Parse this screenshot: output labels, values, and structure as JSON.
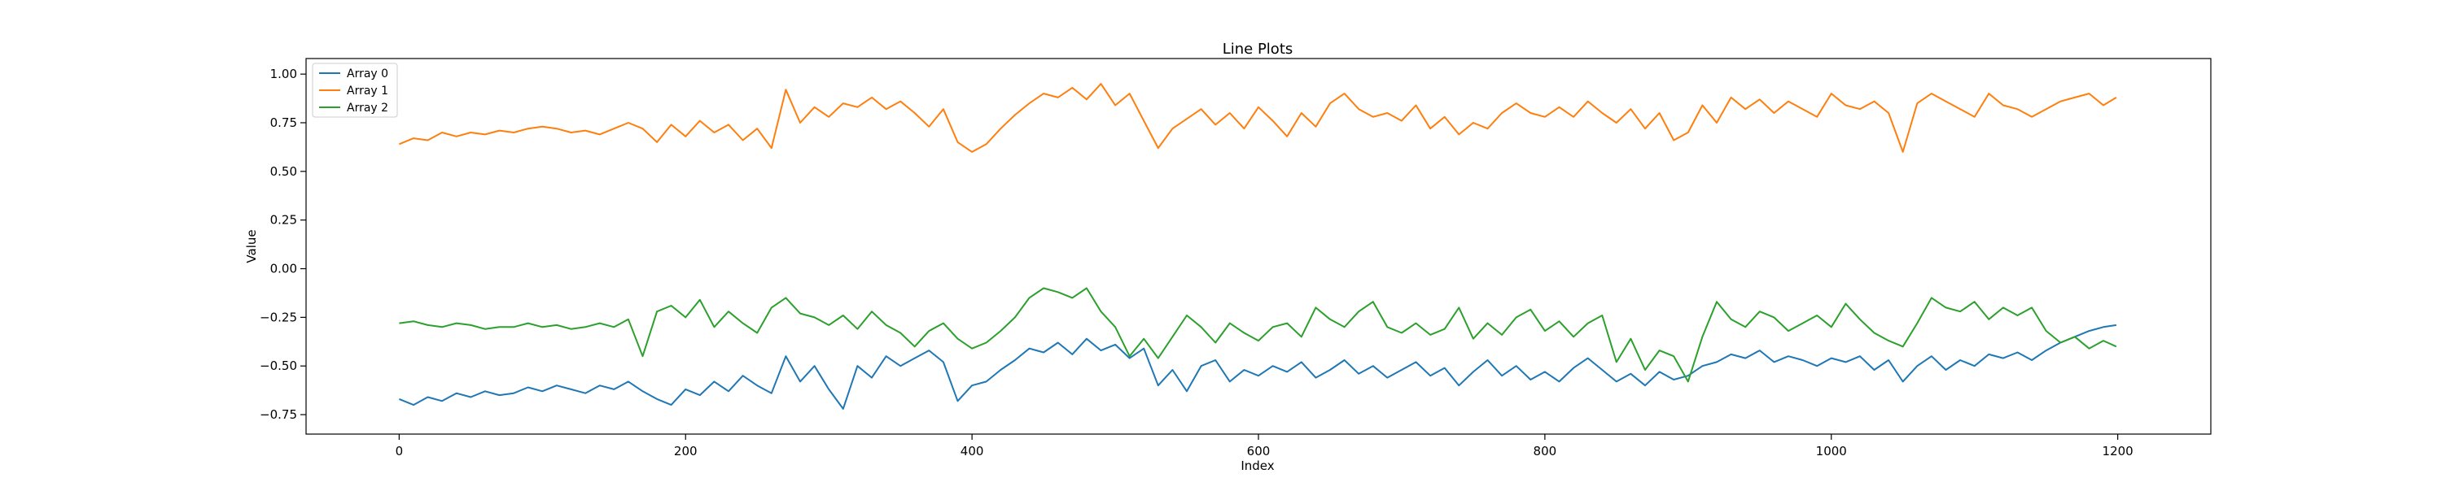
{
  "chart_data": {
    "type": "line",
    "title": "Line Plots",
    "xlabel": "Index",
    "ylabel": "Value",
    "xlim": [
      -65,
      1265
    ],
    "ylim": [
      -0.85,
      1.08
    ],
    "xticks": [
      0,
      200,
      400,
      600,
      800,
      1000,
      1200
    ],
    "yticks": [
      -0.75,
      -0.5,
      -0.25,
      0.0,
      0.25,
      0.5,
      0.75,
      1.0
    ],
    "xtick_labels": [
      "0",
      "200",
      "400",
      "600",
      "800",
      "1000",
      "1200"
    ],
    "ytick_labels": [
      "−0.75",
      "−0.50",
      "−0.25",
      "0.00",
      "0.25",
      "0.50",
      "0.75",
      "1.00"
    ],
    "grid": false,
    "legend_position": "top-left",
    "series": [
      {
        "name": "Array 0",
        "color": "#1f77b4",
        "x": [
          0,
          10,
          20,
          30,
          40,
          50,
          60,
          70,
          80,
          90,
          100,
          110,
          120,
          130,
          140,
          150,
          160,
          170,
          180,
          190,
          200,
          210,
          220,
          230,
          240,
          250,
          260,
          270,
          280,
          290,
          300,
          310,
          320,
          330,
          340,
          350,
          360,
          370,
          380,
          390,
          400,
          410,
          420,
          430,
          440,
          450,
          460,
          470,
          480,
          490,
          500,
          510,
          520,
          530,
          540,
          550,
          560,
          570,
          580,
          590,
          600,
          610,
          620,
          630,
          640,
          650,
          660,
          670,
          680,
          690,
          700,
          710,
          720,
          730,
          740,
          750,
          760,
          770,
          780,
          790,
          800,
          810,
          820,
          830,
          840,
          850,
          860,
          870,
          880,
          890,
          900,
          910,
          920,
          930,
          940,
          950,
          960,
          970,
          980,
          990,
          1000,
          1010,
          1020,
          1030,
          1040,
          1050,
          1060,
          1070,
          1080,
          1090,
          1100,
          1110,
          1120,
          1130,
          1140,
          1150,
          1160,
          1170,
          1180,
          1190,
          1199
        ],
        "y": [
          -0.67,
          -0.7,
          -0.66,
          -0.68,
          -0.64,
          -0.66,
          -0.63,
          -0.65,
          -0.64,
          -0.61,
          -0.63,
          -0.6,
          -0.62,
          -0.64,
          -0.6,
          -0.62,
          -0.58,
          -0.63,
          -0.67,
          -0.7,
          -0.62,
          -0.65,
          -0.58,
          -0.63,
          -0.55,
          -0.6,
          -0.64,
          -0.45,
          -0.58,
          -0.5,
          -0.62,
          -0.72,
          -0.5,
          -0.56,
          -0.45,
          -0.5,
          -0.46,
          -0.42,
          -0.48,
          -0.68,
          -0.6,
          -0.58,
          -0.52,
          -0.47,
          -0.41,
          -0.43,
          -0.38,
          -0.44,
          -0.36,
          -0.42,
          -0.39,
          -0.46,
          -0.41,
          -0.6,
          -0.52,
          -0.63,
          -0.5,
          -0.47,
          -0.58,
          -0.52,
          -0.55,
          -0.5,
          -0.53,
          -0.48,
          -0.56,
          -0.52,
          -0.47,
          -0.54,
          -0.5,
          -0.56,
          -0.52,
          -0.48,
          -0.55,
          -0.51,
          -0.6,
          -0.53,
          -0.47,
          -0.55,
          -0.5,
          -0.57,
          -0.53,
          -0.58,
          -0.51,
          -0.46,
          -0.52,
          -0.58,
          -0.54,
          -0.6,
          -0.53,
          -0.57,
          -0.55,
          -0.5,
          -0.48,
          -0.44,
          -0.46,
          -0.42,
          -0.48,
          -0.45,
          -0.47,
          -0.5,
          -0.46,
          -0.48,
          -0.45,
          -0.52,
          -0.47,
          -0.58,
          -0.5,
          -0.45,
          -0.52,
          -0.47,
          -0.5,
          -0.44,
          -0.46,
          -0.43,
          -0.47,
          -0.42,
          -0.38,
          -0.35,
          -0.32,
          -0.3,
          -0.29
        ]
      },
      {
        "name": "Array 1",
        "color": "#ff7f0e",
        "x": [
          0,
          10,
          20,
          30,
          40,
          50,
          60,
          70,
          80,
          90,
          100,
          110,
          120,
          130,
          140,
          150,
          160,
          170,
          180,
          190,
          200,
          210,
          220,
          230,
          240,
          250,
          260,
          270,
          280,
          290,
          300,
          310,
          320,
          330,
          340,
          350,
          360,
          370,
          380,
          390,
          400,
          410,
          420,
          430,
          440,
          450,
          460,
          470,
          480,
          490,
          500,
          510,
          520,
          530,
          540,
          550,
          560,
          570,
          580,
          590,
          600,
          610,
          620,
          630,
          640,
          650,
          660,
          670,
          680,
          690,
          700,
          710,
          720,
          730,
          740,
          750,
          760,
          770,
          780,
          790,
          800,
          810,
          820,
          830,
          840,
          850,
          860,
          870,
          880,
          890,
          900,
          910,
          920,
          930,
          940,
          950,
          960,
          970,
          980,
          990,
          1000,
          1010,
          1020,
          1030,
          1040,
          1050,
          1060,
          1070,
          1080,
          1090,
          1100,
          1110,
          1120,
          1130,
          1140,
          1150,
          1160,
          1170,
          1180,
          1190,
          1199
        ],
        "y": [
          0.64,
          0.67,
          0.66,
          0.7,
          0.68,
          0.7,
          0.69,
          0.71,
          0.7,
          0.72,
          0.73,
          0.72,
          0.7,
          0.71,
          0.69,
          0.72,
          0.75,
          0.72,
          0.65,
          0.74,
          0.68,
          0.76,
          0.7,
          0.74,
          0.66,
          0.72,
          0.62,
          0.92,
          0.75,
          0.83,
          0.78,
          0.85,
          0.83,
          0.88,
          0.82,
          0.86,
          0.8,
          0.73,
          0.82,
          0.65,
          0.6,
          0.64,
          0.72,
          0.79,
          0.85,
          0.9,
          0.88,
          0.93,
          0.87,
          0.95,
          0.84,
          0.9,
          0.76,
          0.62,
          0.72,
          0.77,
          0.82,
          0.74,
          0.8,
          0.72,
          0.83,
          0.76,
          0.68,
          0.8,
          0.73,
          0.85,
          0.9,
          0.82,
          0.78,
          0.8,
          0.76,
          0.84,
          0.72,
          0.78,
          0.69,
          0.75,
          0.72,
          0.8,
          0.85,
          0.8,
          0.78,
          0.83,
          0.78,
          0.86,
          0.8,
          0.75,
          0.82,
          0.72,
          0.8,
          0.66,
          0.7,
          0.84,
          0.75,
          0.88,
          0.82,
          0.87,
          0.8,
          0.86,
          0.82,
          0.78,
          0.9,
          0.84,
          0.82,
          0.86,
          0.8,
          0.6,
          0.85,
          0.9,
          0.86,
          0.82,
          0.78,
          0.9,
          0.84,
          0.82,
          0.78,
          0.82,
          0.86,
          0.88,
          0.9,
          0.84,
          0.88
        ]
      },
      {
        "name": "Array 2",
        "color": "#2ca02c",
        "x": [
          0,
          10,
          20,
          30,
          40,
          50,
          60,
          70,
          80,
          90,
          100,
          110,
          120,
          130,
          140,
          150,
          160,
          170,
          180,
          190,
          200,
          210,
          220,
          230,
          240,
          250,
          260,
          270,
          280,
          290,
          300,
          310,
          320,
          330,
          340,
          350,
          360,
          370,
          380,
          390,
          400,
          410,
          420,
          430,
          440,
          450,
          460,
          470,
          480,
          490,
          500,
          510,
          520,
          530,
          540,
          550,
          560,
          570,
          580,
          590,
          600,
          610,
          620,
          630,
          640,
          650,
          660,
          670,
          680,
          690,
          700,
          710,
          720,
          730,
          740,
          750,
          760,
          770,
          780,
          790,
          800,
          810,
          820,
          830,
          840,
          850,
          860,
          870,
          880,
          890,
          900,
          910,
          920,
          930,
          940,
          950,
          960,
          970,
          980,
          990,
          1000,
          1010,
          1020,
          1030,
          1040,
          1050,
          1060,
          1070,
          1080,
          1090,
          1100,
          1110,
          1120,
          1130,
          1140,
          1150,
          1160,
          1170,
          1180,
          1190,
          1199
        ],
        "y": [
          -0.28,
          -0.27,
          -0.29,
          -0.3,
          -0.28,
          -0.29,
          -0.31,
          -0.3,
          -0.3,
          -0.28,
          -0.3,
          -0.29,
          -0.31,
          -0.3,
          -0.28,
          -0.3,
          -0.26,
          -0.45,
          -0.22,
          -0.19,
          -0.25,
          -0.16,
          -0.3,
          -0.22,
          -0.28,
          -0.33,
          -0.2,
          -0.15,
          -0.23,
          -0.25,
          -0.29,
          -0.24,
          -0.31,
          -0.22,
          -0.29,
          -0.33,
          -0.4,
          -0.32,
          -0.28,
          -0.36,
          -0.41,
          -0.38,
          -0.32,
          -0.25,
          -0.15,
          -0.1,
          -0.12,
          -0.15,
          -0.1,
          -0.22,
          -0.3,
          -0.45,
          -0.36,
          -0.46,
          -0.35,
          -0.24,
          -0.3,
          -0.38,
          -0.28,
          -0.33,
          -0.37,
          -0.3,
          -0.28,
          -0.35,
          -0.2,
          -0.26,
          -0.3,
          -0.22,
          -0.17,
          -0.3,
          -0.33,
          -0.28,
          -0.34,
          -0.31,
          -0.2,
          -0.36,
          -0.28,
          -0.34,
          -0.25,
          -0.21,
          -0.32,
          -0.27,
          -0.35,
          -0.28,
          -0.24,
          -0.48,
          -0.36,
          -0.52,
          -0.42,
          -0.45,
          -0.58,
          -0.35,
          -0.17,
          -0.26,
          -0.3,
          -0.22,
          -0.25,
          -0.32,
          -0.28,
          -0.24,
          -0.3,
          -0.18,
          -0.26,
          -0.33,
          -0.37,
          -0.4,
          -0.28,
          -0.15,
          -0.2,
          -0.22,
          -0.17,
          -0.26,
          -0.2,
          -0.24,
          -0.2,
          -0.32,
          -0.38,
          -0.35,
          -0.41,
          -0.37,
          -0.4
        ]
      }
    ]
  }
}
